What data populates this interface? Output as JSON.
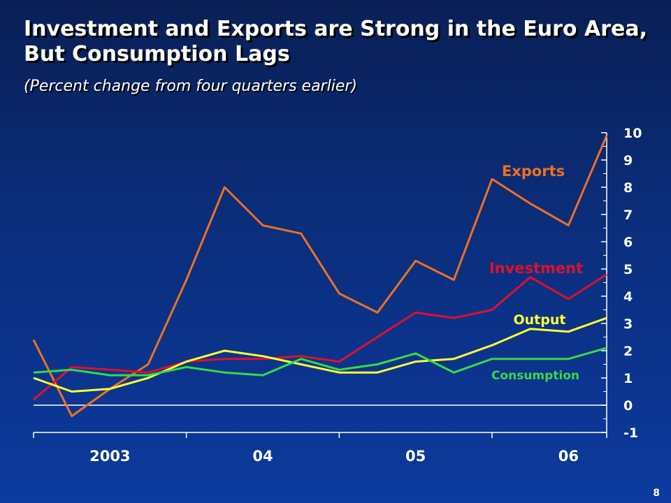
{
  "title": "Investment and Exports are Strong in the Euro Area, But Consumption Lags",
  "subtitle": "(Percent change from four quarters earlier)",
  "page_number": "8",
  "chart_data": {
    "type": "line",
    "title": "Investment and Exports are Strong in the Euro Area, But Consumption Lags",
    "subtitle": "(Percent change from four quarters earlier)",
    "x": [
      "2003Q1",
      "2003Q2",
      "2003Q3",
      "2003Q4",
      "2004Q1",
      "2004Q2",
      "2004Q3",
      "2004Q4",
      "2005Q1",
      "2005Q2",
      "2005Q3",
      "2005Q4",
      "2006Q1",
      "2006Q2",
      "2006Q3",
      "2006Q4"
    ],
    "x_tick_labels": [
      "2003",
      "04",
      "05",
      "06"
    ],
    "y_tick_labels": [
      "10",
      "9",
      "8",
      "7",
      "6",
      "5",
      "4",
      "3",
      "2",
      "1",
      "0",
      "-1"
    ],
    "ylim": [
      -1,
      10
    ],
    "y_axis_position": "right",
    "grid": false,
    "legend": "inline labels",
    "series": [
      {
        "name": "Exports",
        "color": "#f07020",
        "values": [
          2.4,
          -0.4,
          0.6,
          1.5,
          4.6,
          8.0,
          6.6,
          6.3,
          4.1,
          3.4,
          5.3,
          4.6,
          8.3,
          7.4,
          6.6,
          9.9
        ]
      },
      {
        "name": "Investment",
        "color": "#e0102a",
        "values": [
          0.2,
          1.4,
          1.3,
          1.2,
          1.6,
          1.7,
          1.7,
          1.8,
          1.6,
          2.5,
          3.4,
          3.2,
          3.5,
          4.7,
          3.9,
          4.8
        ]
      },
      {
        "name": "Output",
        "color": "#ffff33",
        "values": [
          1.0,
          0.5,
          0.6,
          1.0,
          1.6,
          2.0,
          1.8,
          1.5,
          1.2,
          1.2,
          1.6,
          1.7,
          2.2,
          2.8,
          2.7,
          3.2
        ]
      },
      {
        "name": "Consumption",
        "color": "#33dd44",
        "values": [
          1.2,
          1.3,
          1.1,
          1.1,
          1.4,
          1.2,
          1.1,
          1.7,
          1.3,
          1.5,
          1.9,
          1.2,
          1.7,
          1.7,
          1.7,
          2.1
        ]
      }
    ]
  }
}
